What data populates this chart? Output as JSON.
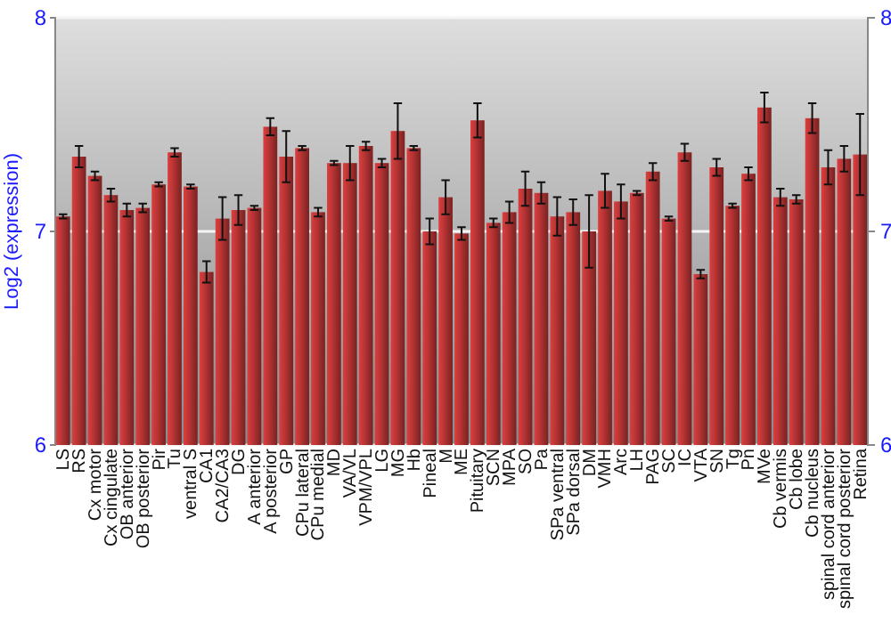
{
  "chart_data": {
    "type": "bar",
    "ylabel": "Log2 (expression)",
    "categories": [
      "LS",
      "RS",
      "Cx motor",
      "Cx cingulate",
      "OB anterior",
      "OB posterior",
      "Pir",
      "Tu",
      "ventral S",
      "CA1",
      "CA2/CA3",
      "DG",
      "A anterior",
      "A posterior",
      "GP",
      "CPu lateral",
      "CPu medial",
      "MD",
      "VA/VL",
      "VPM/VPL",
      "LG",
      "MG",
      "Hb",
      "Pineal",
      "M",
      "ME",
      "Pituitary",
      "SCN",
      "MPA",
      "SO",
      "Pa",
      "SPa ventral",
      "SPa dorsal",
      "DM",
      "VMH",
      "Arc",
      "LH",
      "PAG",
      "SC",
      "IC",
      "VTA",
      "SN",
      "Tg",
      "Pn",
      "MVe",
      "Cb vermis",
      "Cb lobe",
      "Cb nucleus",
      "spinal cord anterior",
      "spinal cord posterior",
      "Retina"
    ],
    "values": [
      7.07,
      7.35,
      7.26,
      7.17,
      7.1,
      7.11,
      7.22,
      7.37,
      7.21,
      6.81,
      7.06,
      7.1,
      7.11,
      7.49,
      7.35,
      7.39,
      7.09,
      7.32,
      7.32,
      7.4,
      7.32,
      7.47,
      7.39,
      7.0,
      7.16,
      6.99,
      7.52,
      7.04,
      7.09,
      7.2,
      7.18,
      7.07,
      7.09,
      7.0,
      7.19,
      7.14,
      7.18,
      7.28,
      7.06,
      7.37,
      6.8,
      7.3,
      7.12,
      7.27,
      7.58,
      7.16,
      7.15,
      7.53,
      7.3,
      7.34,
      7.36
    ],
    "errors": [
      0.01,
      0.05,
      0.02,
      0.03,
      0.03,
      0.02,
      0.01,
      0.02,
      0.01,
      0.05,
      0.1,
      0.07,
      0.01,
      0.04,
      0.12,
      0.01,
      0.02,
      0.01,
      0.08,
      0.02,
      0.02,
      0.13,
      0.01,
      0.06,
      0.08,
      0.03,
      0.08,
      0.02,
      0.05,
      0.08,
      0.05,
      0.09,
      0.06,
      0.17,
      0.08,
      0.08,
      0.01,
      0.04,
      0.01,
      0.04,
      0.02,
      0.04,
      0.01,
      0.03,
      0.07,
      0.04,
      0.02,
      0.07,
      0.08,
      0.06,
      0.19
    ],
    "color": "#b83434",
    "ylim": [
      6,
      8
    ],
    "yticks": [
      6,
      7,
      8
    ],
    "y2lim": [
      6,
      8
    ],
    "y2ticks": [
      6,
      7,
      8
    ],
    "grid": "y"
  }
}
